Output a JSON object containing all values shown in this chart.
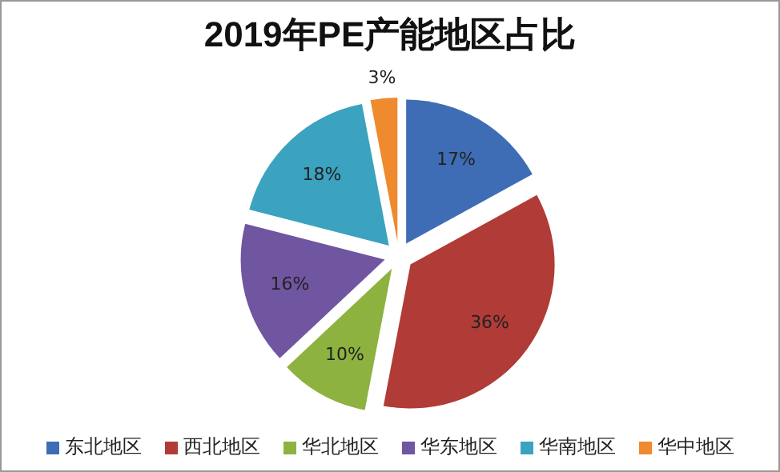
{
  "chart_data": {
    "type": "pie",
    "title": "2019年PE产能地区占比",
    "categories": [
      "东北地区",
      "西北地区",
      "华北地区",
      "华东地区",
      "华南地区",
      "华中地区"
    ],
    "values": [
      17,
      36,
      10,
      16,
      18,
      3
    ],
    "colors": [
      "#3e6db5",
      "#b13b37",
      "#8db23f",
      "#7055a0",
      "#3ba2bf",
      "#ef8a2e"
    ],
    "value_labels": [
      "17%",
      "36%",
      "10%",
      "16%",
      "18%",
      "3%"
    ],
    "legend": "bottom"
  }
}
